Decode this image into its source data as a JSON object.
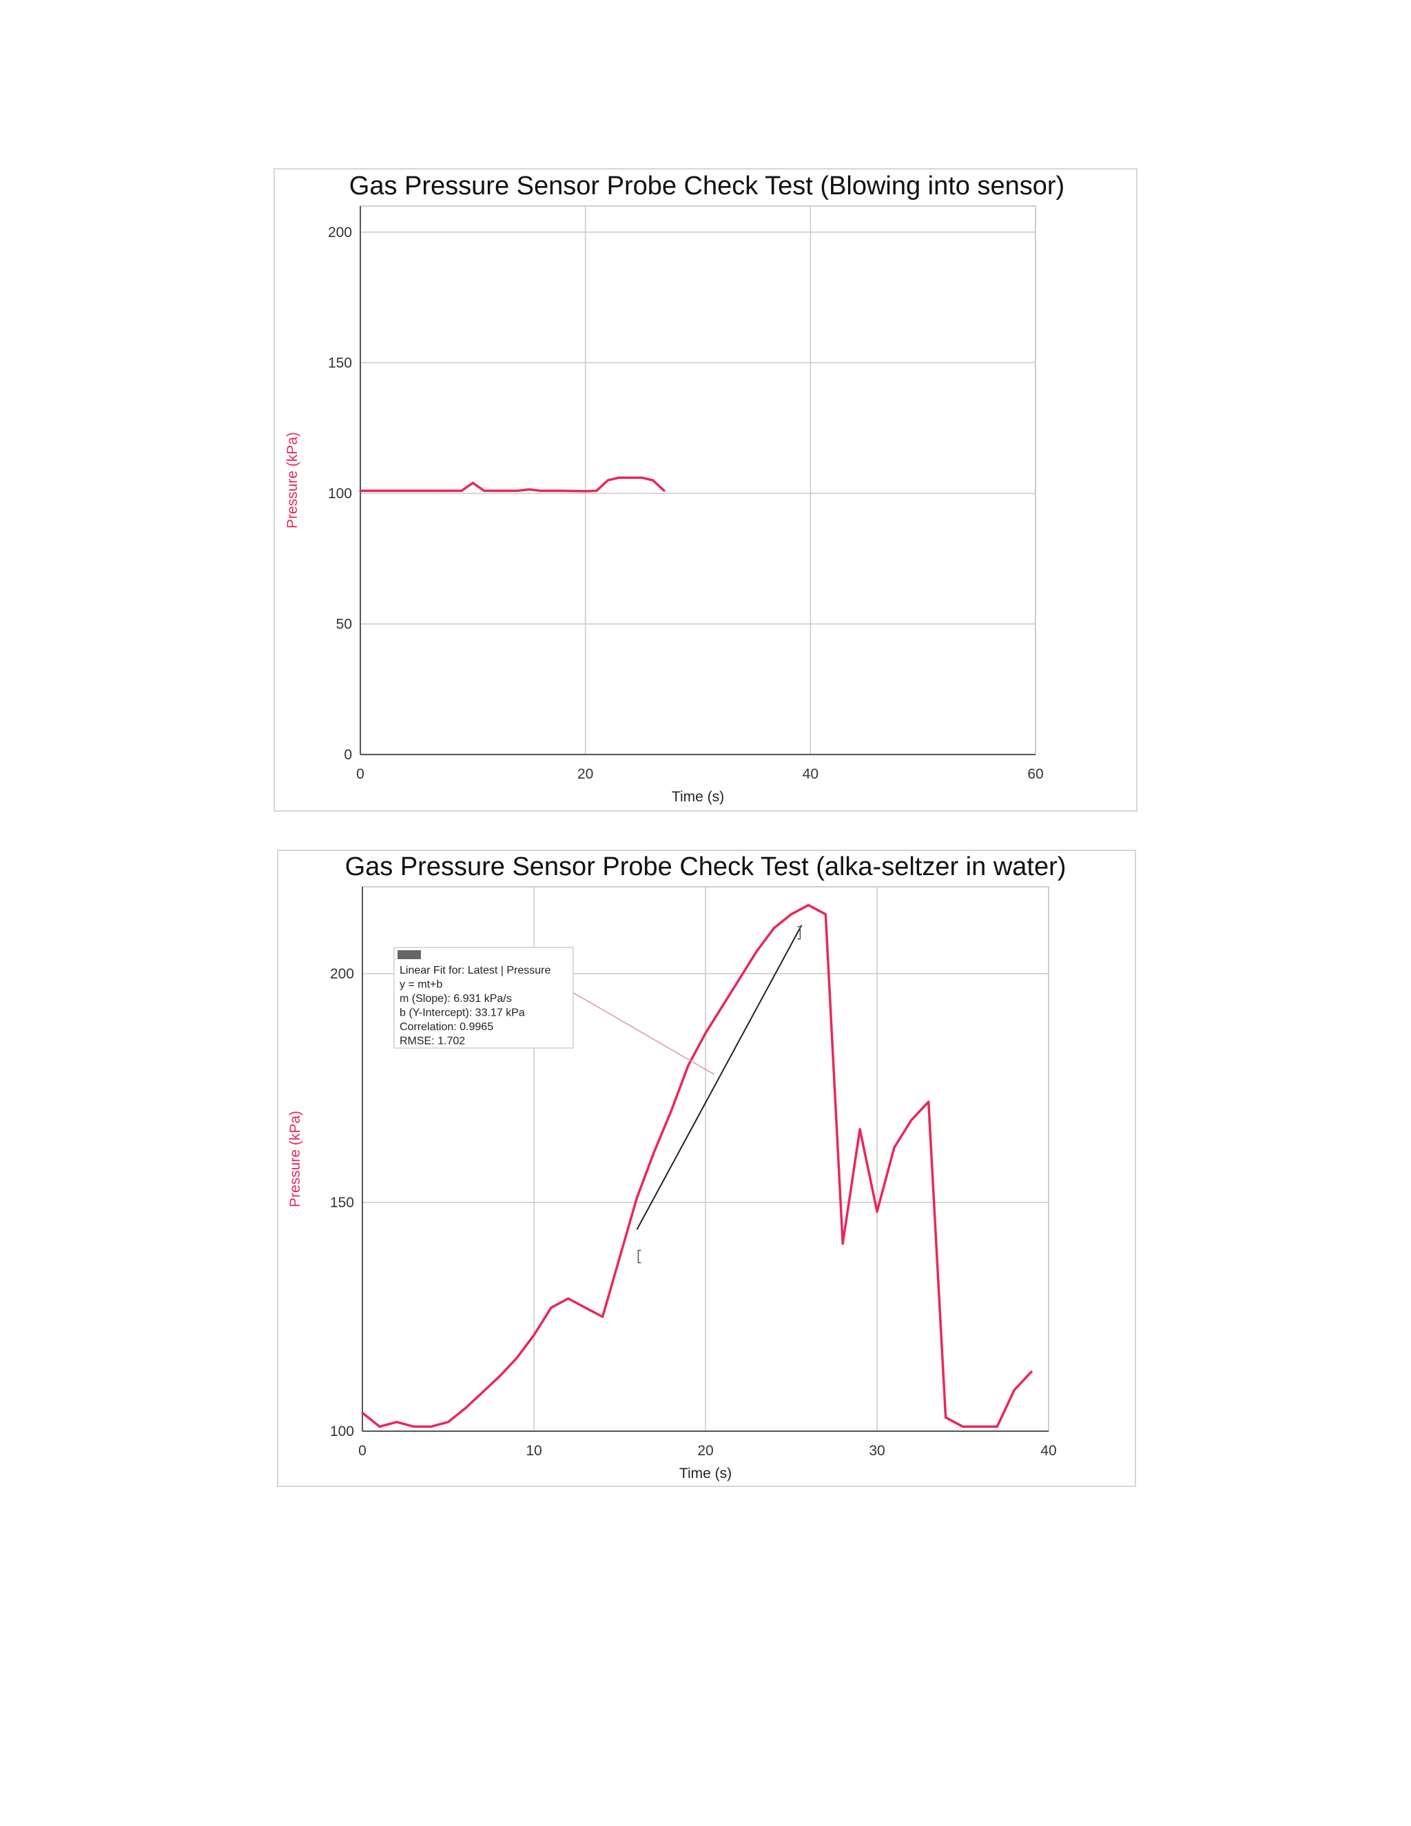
{
  "chart_data": [
    {
      "type": "line",
      "title": "Gas Pressure Sensor Probe Check Test (Blowing into sensor)",
      "xlabel": "Time (s)",
      "ylabel": "Pressure (kPa)",
      "xlim": [
        0,
        60
      ],
      "ylim": [
        0,
        210
      ],
      "xticks": [
        0,
        20,
        40,
        60
      ],
      "yticks": [
        0,
        50,
        100,
        150,
        200
      ],
      "grid": true,
      "colors": {
        "series": "#e8285a",
        "grid": "#c8c8c8",
        "axis": "#555555",
        "ylabel": "#e8285a"
      },
      "series": [
        {
          "x": [
            0,
            9,
            10,
            11,
            14,
            15,
            16,
            18,
            20,
            21,
            22,
            23,
            25,
            26,
            27
          ],
          "y": [
            101,
            101,
            104,
            101,
            101,
            101.5,
            101,
            101,
            100.8,
            101,
            105,
            106,
            106,
            105,
            101
          ]
        }
      ]
    },
    {
      "type": "line",
      "title": "Gas Pressure Sensor Probe Check Test (alka-seltzer in water)",
      "xlabel": "Time (s)",
      "ylabel": "Pressure (kPa)",
      "xlim": [
        0,
        40
      ],
      "ylim": [
        100,
        219
      ],
      "xticks": [
        0,
        10,
        20,
        30,
        40
      ],
      "yticks": [
        100,
        150,
        200
      ],
      "grid": true,
      "colors": {
        "series": "#e8285a",
        "fit": "#222222",
        "grid": "#c8c8c8",
        "axis": "#555555",
        "ylabel": "#e8285a",
        "leader": "#d89aaa"
      },
      "series": [
        {
          "x": [
            0,
            1,
            2,
            3,
            4,
            5,
            6,
            7,
            8,
            9,
            10,
            11,
            12,
            13,
            14,
            15,
            16,
            17,
            18,
            19,
            20,
            21,
            22,
            23,
            24,
            25,
            26,
            27,
            28,
            29,
            30,
            31,
            32,
            33,
            34,
            35,
            36,
            37,
            38,
            39
          ],
          "y": [
            104,
            101,
            102,
            101,
            101,
            102,
            105,
            108.5,
            112,
            116,
            121,
            127,
            129,
            127,
            125,
            138,
            151,
            161,
            170,
            180,
            187,
            193,
            199,
            205,
            210,
            213,
            215,
            213,
            141,
            166,
            148,
            162,
            168,
            172,
            103,
            101,
            101,
            101,
            109,
            113
          ]
        }
      ],
      "fit": {
        "x": [
          16,
          25.6
        ],
        "slope": 6.931,
        "intercept": 33.17
      },
      "fit_box": {
        "lines": [
          "Linear Fit for: Latest | Pressure",
          "y = mt+b",
          "m (Slope): 6.931 kPa/s",
          "b (Y-Intercept): 33.17 kPa",
          "Correlation: 0.9965",
          "RMSE: 1.702"
        ]
      }
    }
  ]
}
